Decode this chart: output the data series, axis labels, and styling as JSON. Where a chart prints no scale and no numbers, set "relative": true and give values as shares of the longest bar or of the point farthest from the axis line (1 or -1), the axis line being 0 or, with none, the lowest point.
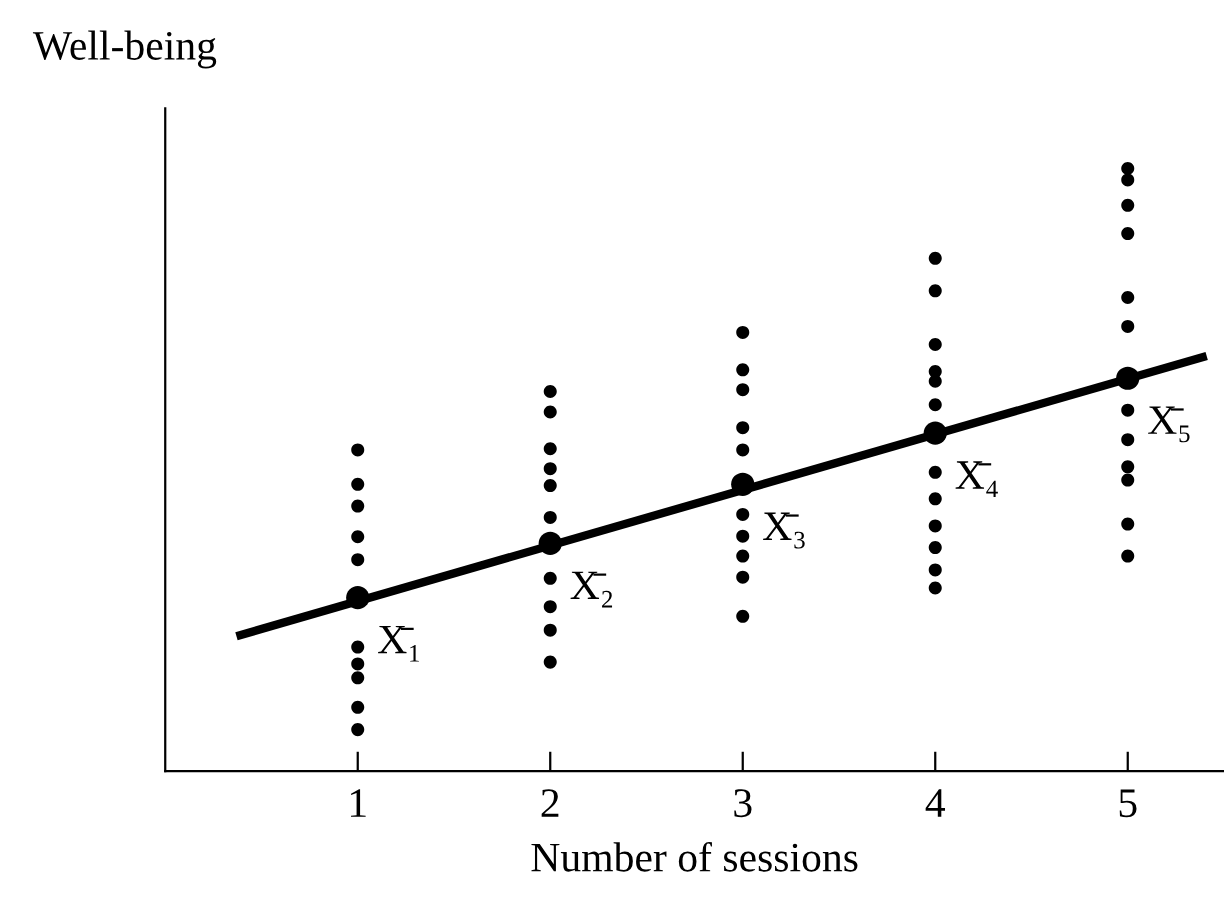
{
  "chart_data": {
    "type": "scatter",
    "relative": true,
    "ylabel": "Well-being",
    "xlabel": "Number of sessions",
    "xlim": [
      0,
      5.5
    ],
    "xticks": [
      1,
      2,
      3,
      4,
      5
    ],
    "series": [
      {
        "marker": "circle",
        "color": "#000000",
        "x": [
          1,
          1,
          1,
          1,
          1,
          1,
          1,
          1,
          1,
          1,
          2,
          2,
          2,
          2,
          2,
          2,
          2,
          2,
          2,
          2,
          3,
          3,
          3,
          3,
          3,
          3,
          3,
          3,
          3,
          3,
          4,
          4,
          4,
          4,
          4,
          4,
          4,
          4,
          4,
          4,
          4,
          4,
          5,
          5,
          5,
          5,
          5,
          5,
          5,
          5,
          5,
          5,
          5,
          5
        ],
        "values": [
          0.533,
          0.476,
          0.44,
          0.389,
          0.351,
          0.206,
          0.178,
          0.155,
          0.106,
          0.069,
          0.63,
          0.596,
          0.535,
          0.502,
          0.474,
          0.421,
          0.32,
          0.273,
          0.234,
          0.181,
          0.728,
          0.666,
          0.633,
          0.57,
          0.533,
          0.426,
          0.39,
          0.357,
          0.322,
          0.257,
          0.851,
          0.797,
          0.708,
          0.663,
          0.647,
          0.608,
          0.496,
          0.452,
          0.407,
          0.371,
          0.334,
          0.304,
          1.0,
          0.981,
          0.939,
          0.892,
          0.786,
          0.738,
          0.599,
          0.55,
          0.505,
          0.483,
          0.41,
          0.357
        ]
      },
      {
        "marker": "circle",
        "color": "#000000",
        "x": [
          1,
          2,
          3,
          4,
          5
        ],
        "values": [
          0.288,
          0.378,
          0.476,
          0.561,
          0.652
        ]
      },
      {
        "type": "line",
        "color": "#000000",
        "x": [
          0.37,
          5.41
        ],
        "values": [
          0.224,
          0.689
        ]
      }
    ],
    "annotations": [
      {
        "text": "X̄₁",
        "x": 1,
        "y": 0.288
      },
      {
        "text": "X̄₂",
        "x": 2,
        "y": 0.378
      },
      {
        "text": "X̄₃",
        "x": 3,
        "y": 0.476
      },
      {
        "text": "X̄₄",
        "x": 4,
        "y": 0.561
      },
      {
        "text": "X̄₅",
        "x": 5,
        "y": 0.652
      }
    ]
  }
}
